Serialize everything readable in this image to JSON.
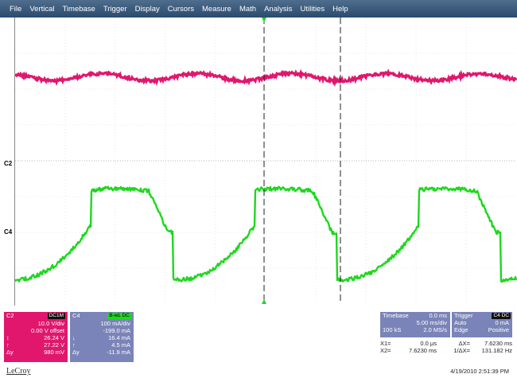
{
  "menu": [
    "File",
    "Vertical",
    "Timebase",
    "Trigger",
    "Display",
    "Cursors",
    "Measure",
    "Math",
    "Analysis",
    "Utilities",
    "Help"
  ],
  "channels": {
    "c2": {
      "marker": "C2",
      "color": "#e0176d"
    },
    "c4": {
      "marker": "C4",
      "color": "#1ed71e"
    }
  },
  "c2_panel": {
    "name": "C2",
    "badge": "DC1M",
    "color": "#e0176d",
    "rows": [
      {
        "k": "",
        "v": "10.0 V/div"
      },
      {
        "k": "",
        "v": "0.00 V offset"
      },
      {
        "k": "↕",
        "v": "26.24 V"
      },
      {
        "k": "↑",
        "v": "27.22 V"
      },
      {
        "k": "Δy",
        "v": "980 mV"
      }
    ]
  },
  "c4_panel": {
    "name": "C4",
    "badge": "B-wL DC",
    "color": "#7a84b8",
    "rows": [
      {
        "k": "",
        "v": "100 mA/div"
      },
      {
        "k": "",
        "v": "-199.0 mA"
      },
      {
        "k": "↓",
        "v": "16.4 mA"
      },
      {
        "k": "↑",
        "v": "4.5 mA"
      },
      {
        "k": "Δy",
        "v": "-11.9 mA"
      }
    ]
  },
  "timebase": {
    "label": "Timebase",
    "value": "0.0 ms",
    "div": "5.00 ms/div",
    "samples": "100 kS",
    "rate": "2.0 MS/s"
  },
  "trigger": {
    "label": "Trigger",
    "badge": "C4 DC",
    "mode": "Auto",
    "level": "0 mA",
    "type": "Edge",
    "slope": "Positive"
  },
  "cursors": {
    "x1_label": "X1=",
    "x1_value": "0.0 μs",
    "dx_label": "ΔX=",
    "dx_value": "7.6230 ms",
    "x2_label": "X2=",
    "x2_value": "7.6230 ms",
    "inv_label": "1/ΔX=",
    "inv_value": "131.182 Hz"
  },
  "brand": "LeCroy",
  "datetime": "4/19/2010 2:51:39 PM"
}
